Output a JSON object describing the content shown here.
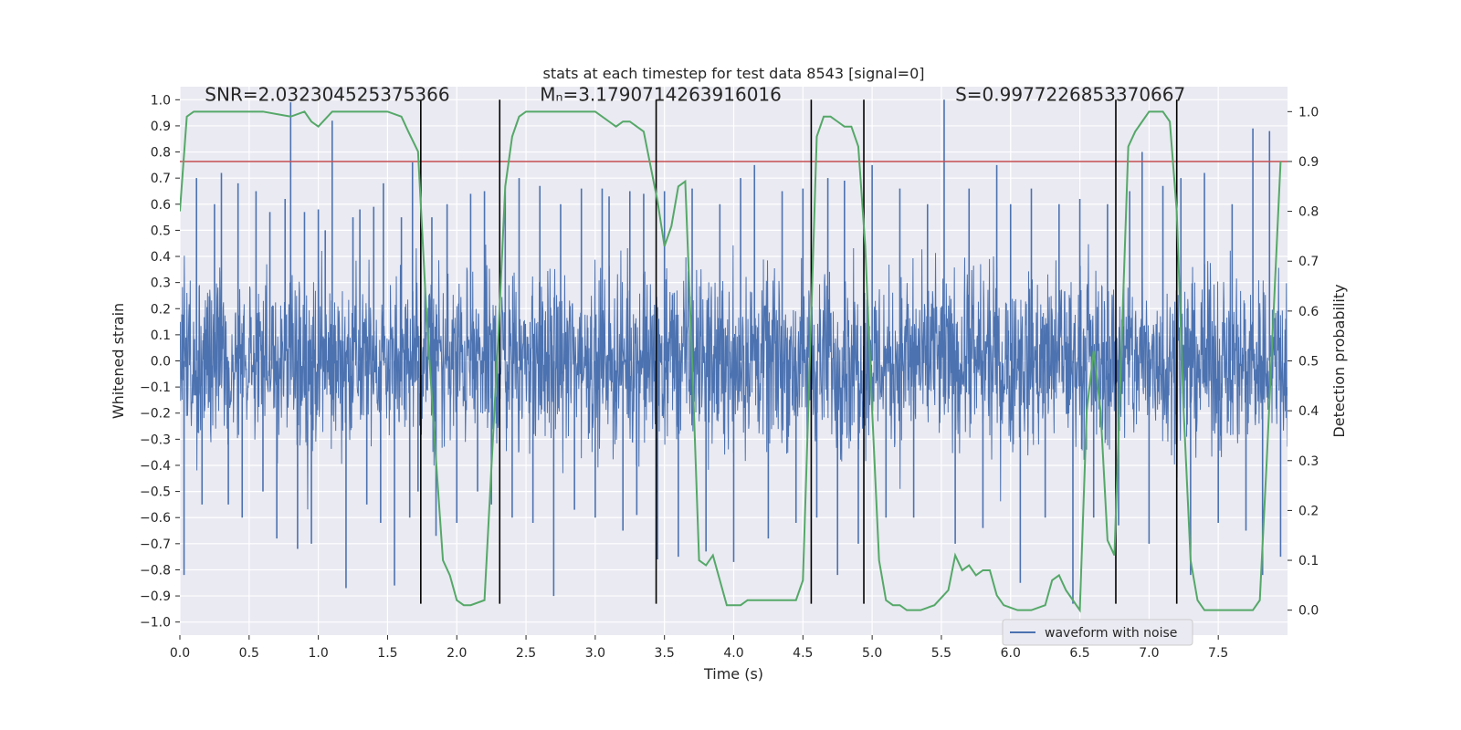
{
  "chart_data": {
    "type": "line",
    "title": "stats at each timestep for test data 8543 [signal=0]",
    "xlabel": "Time (s)",
    "ylabel": "Whitened strain",
    "y2label": "Detection probability",
    "xlim": [
      0,
      8
    ],
    "ylim": [
      -1.05,
      1.05
    ],
    "y2lim": [
      -0.05,
      1.05
    ],
    "xticks": [
      "0.0",
      "0.5",
      "1.0",
      "1.5",
      "2.0",
      "2.5",
      "3.0",
      "3.5",
      "4.0",
      "4.5",
      "5.0",
      "5.5",
      "6.0",
      "6.5",
      "7.0",
      "7.5"
    ],
    "xtick_values": [
      0,
      0.5,
      1,
      1.5,
      2,
      2.5,
      3,
      3.5,
      4,
      4.5,
      5,
      5.5,
      6,
      6.5,
      7,
      7.5
    ],
    "yticks": [
      "−1.0",
      "−0.9",
      "−0.8",
      "−0.7",
      "−0.6",
      "−0.5",
      "−0.4",
      "−0.3",
      "−0.2",
      "−0.1",
      "0.0",
      "0.1",
      "0.2",
      "0.3",
      "0.4",
      "0.5",
      "0.6",
      "0.7",
      "0.8",
      "0.9",
      "1.0"
    ],
    "ytick_values": [
      -1,
      -0.9,
      -0.8,
      -0.7,
      -0.6,
      -0.5,
      -0.4,
      -0.3,
      -0.2,
      -0.1,
      0,
      0.1,
      0.2,
      0.3,
      0.4,
      0.5,
      0.6,
      0.7,
      0.8,
      0.9,
      1.0
    ],
    "y2ticks": [
      "0.0",
      "0.1",
      "0.2",
      "0.3",
      "0.4",
      "0.5",
      "0.6",
      "0.7",
      "0.8",
      "0.9",
      "1.0"
    ],
    "y2tick_values": [
      0,
      0.1,
      0.2,
      0.3,
      0.4,
      0.5,
      0.6,
      0.7,
      0.8,
      0.9,
      1.0
    ],
    "grid": true,
    "legend_position": "lower right",
    "annotations": [
      {
        "text": "SNR=2.032304525375366",
        "x": 0.18,
        "y": 1.02
      },
      {
        "text": "Mₙ=3.1790714263916016",
        "x": 2.6,
        "y": 1.02
      },
      {
        "text": "S=0.9977226853370667",
        "x": 5.6,
        "y": 1.02
      }
    ],
    "threshold": {
      "value": 0.9,
      "axis": "y2",
      "color": "#c44e52"
    },
    "boundaries": [
      1.74,
      2.31,
      3.44,
      4.56,
      4.94,
      6.76,
      7.2
    ],
    "series": [
      {
        "name": "waveform with noise",
        "color": "#4c72b0",
        "samples": 3000,
        "core_envelope": 0.48,
        "spikes": [
          [
            0.03,
            -0.82
          ],
          [
            0.12,
            0.7
          ],
          [
            0.16,
            -0.55
          ],
          [
            0.25,
            0.6
          ],
          [
            0.3,
            0.72
          ],
          [
            0.35,
            -0.55
          ],
          [
            0.42,
            0.68
          ],
          [
            0.45,
            -0.6
          ],
          [
            0.55,
            0.65
          ],
          [
            0.6,
            -0.5
          ],
          [
            0.65,
            0.57
          ],
          [
            0.7,
            -0.68
          ],
          [
            0.76,
            0.62
          ],
          [
            0.8,
            0.99
          ],
          [
            0.85,
            -0.72
          ],
          [
            0.9,
            0.57
          ],
          [
            0.95,
            -0.7
          ],
          [
            1.0,
            0.58
          ],
          [
            1.05,
            0.5
          ],
          [
            1.1,
            0.92
          ],
          [
            1.2,
            -0.87
          ],
          [
            1.25,
            0.55
          ],
          [
            1.3,
            0.58
          ],
          [
            1.35,
            -0.55
          ],
          [
            1.4,
            0.59
          ],
          [
            1.45,
            -0.62
          ],
          [
            1.47,
            0.68
          ],
          [
            1.55,
            -0.86
          ],
          [
            1.6,
            0.55
          ],
          [
            1.66,
            -0.6
          ],
          [
            1.68,
            0.76
          ],
          [
            1.72,
            -0.5
          ],
          [
            1.82,
            0.55
          ],
          [
            1.85,
            -0.67
          ],
          [
            1.93,
            0.6
          ],
          [
            2.0,
            -0.62
          ],
          [
            2.1,
            0.64
          ],
          [
            2.15,
            -0.5
          ],
          [
            2.2,
            0.65
          ],
          [
            2.25,
            -0.55
          ],
          [
            2.35,
            0.65
          ],
          [
            2.4,
            -0.6
          ],
          [
            2.45,
            0.7
          ],
          [
            2.55,
            -0.62
          ],
          [
            2.6,
            0.67
          ],
          [
            2.7,
            -0.9
          ],
          [
            2.75,
            0.6
          ],
          [
            2.85,
            -0.57
          ],
          [
            2.9,
            0.66
          ],
          [
            3.0,
            -0.6
          ],
          [
            3.05,
            0.66
          ],
          [
            3.1,
            0.63
          ],
          [
            3.2,
            -0.65
          ],
          [
            3.25,
            0.65
          ],
          [
            3.3,
            -0.59
          ],
          [
            3.35,
            0.64
          ],
          [
            3.45,
            -0.76
          ],
          [
            3.5,
            0.65
          ],
          [
            3.6,
            -0.75
          ],
          [
            3.7,
            0.66
          ],
          [
            3.8,
            -0.73
          ],
          [
            3.9,
            0.6
          ],
          [
            4.0,
            -0.77
          ],
          [
            4.05,
            0.7
          ],
          [
            4.15,
            0.75
          ],
          [
            4.25,
            -0.68
          ],
          [
            4.35,
            0.65
          ],
          [
            4.45,
            -0.62
          ],
          [
            4.5,
            0.66
          ],
          [
            4.6,
            -0.6
          ],
          [
            4.68,
            0.7
          ],
          [
            4.75,
            -0.82
          ],
          [
            4.8,
            0.69
          ],
          [
            4.9,
            -0.7
          ],
          [
            5.0,
            0.75
          ],
          [
            5.1,
            -0.6
          ],
          [
            5.2,
            0.66
          ],
          [
            5.3,
            -0.6
          ],
          [
            5.4,
            0.6
          ],
          [
            5.52,
            1.0
          ],
          [
            5.6,
            -0.7
          ],
          [
            5.7,
            0.66
          ],
          [
            5.8,
            -0.64
          ],
          [
            5.9,
            0.75
          ],
          [
            6.0,
            0.6
          ],
          [
            6.07,
            -0.85
          ],
          [
            6.15,
            0.66
          ],
          [
            6.25,
            -0.6
          ],
          [
            6.35,
            0.6
          ],
          [
            6.45,
            -0.93
          ],
          [
            6.5,
            0.62
          ],
          [
            6.6,
            -0.6
          ],
          [
            6.7,
            0.6
          ],
          [
            6.78,
            -0.63
          ],
          [
            6.86,
            0.65
          ],
          [
            6.95,
            0.8
          ],
          [
            7.0,
            -0.7
          ],
          [
            7.1,
            0.67
          ],
          [
            7.23,
            0.7
          ],
          [
            7.3,
            -0.82
          ],
          [
            7.4,
            0.72
          ],
          [
            7.5,
            -0.62
          ],
          [
            7.6,
            0.6
          ],
          [
            7.7,
            -0.65
          ],
          [
            7.75,
            0.89
          ],
          [
            7.82,
            -0.82
          ],
          [
            7.87,
            0.88
          ],
          [
            7.95,
            -0.75
          ]
        ]
      },
      {
        "name": "",
        "color": "#55a868",
        "axis": "y2",
        "x": [
          0,
          0.05,
          0.1,
          0.2,
          0.4,
          0.6,
          0.8,
          0.9,
          0.95,
          1.0,
          1.1,
          1.3,
          1.5,
          1.6,
          1.65,
          1.72,
          1.78,
          1.85,
          1.9,
          1.95,
          2.0,
          2.05,
          2.1,
          2.2,
          2.3,
          2.35,
          2.4,
          2.45,
          2.5,
          2.6,
          2.8,
          3.0,
          3.1,
          3.15,
          3.2,
          3.25,
          3.3,
          3.35,
          3.45,
          3.5,
          3.55,
          3.6,
          3.65,
          3.7,
          3.75,
          3.8,
          3.85,
          3.95,
          4.0,
          4.05,
          4.1,
          4.15,
          4.2,
          4.25,
          4.35,
          4.4,
          4.45,
          4.5,
          4.55,
          4.6,
          4.65,
          4.7,
          4.75,
          4.8,
          4.85,
          4.9,
          4.95,
          5.0,
          5.05,
          5.1,
          5.15,
          5.2,
          5.25,
          5.35,
          5.45,
          5.55,
          5.6,
          5.65,
          5.7,
          5.75,
          5.8,
          5.85,
          5.9,
          5.95,
          6.05,
          6.15,
          6.25,
          6.3,
          6.35,
          6.4,
          6.45,
          6.5,
          6.55,
          6.6,
          6.65,
          6.7,
          6.75,
          6.8,
          6.85,
          6.9,
          6.95,
          7.0,
          7.05,
          7.1,
          7.15,
          7.2,
          7.25,
          7.3,
          7.35,
          7.4,
          7.45,
          7.55,
          7.65,
          7.75,
          7.8,
          7.85,
          7.9,
          7.95
        ],
        "values": [
          0.8,
          0.99,
          1.0,
          1.0,
          1.0,
          1.0,
          0.99,
          1.0,
          0.98,
          0.97,
          1.0,
          1.0,
          1.0,
          0.99,
          0.96,
          0.92,
          0.6,
          0.3,
          0.1,
          0.07,
          0.02,
          0.01,
          0.01,
          0.02,
          0.55,
          0.85,
          0.95,
          0.99,
          1.0,
          1.0,
          1.0,
          1.0,
          0.98,
          0.97,
          0.98,
          0.98,
          0.97,
          0.96,
          0.82,
          0.73,
          0.77,
          0.85,
          0.86,
          0.5,
          0.1,
          0.09,
          0.11,
          0.01,
          0.01,
          0.01,
          0.02,
          0.02,
          0.02,
          0.02,
          0.02,
          0.02,
          0.02,
          0.06,
          0.5,
          0.95,
          0.99,
          0.99,
          0.98,
          0.97,
          0.97,
          0.93,
          0.73,
          0.4,
          0.1,
          0.02,
          0.01,
          0.01,
          0.0,
          0.0,
          0.01,
          0.04,
          0.11,
          0.08,
          0.09,
          0.07,
          0.08,
          0.08,
          0.03,
          0.01,
          0.0,
          0.0,
          0.01,
          0.06,
          0.07,
          0.04,
          0.02,
          0.0,
          0.4,
          0.52,
          0.4,
          0.14,
          0.11,
          0.52,
          0.93,
          0.96,
          0.98,
          1.0,
          1.0,
          1.0,
          0.98,
          0.8,
          0.4,
          0.1,
          0.02,
          0.0,
          0.0,
          0.0,
          0.0,
          0.0,
          0.02,
          0.3,
          0.6,
          0.9
        ]
      }
    ]
  }
}
